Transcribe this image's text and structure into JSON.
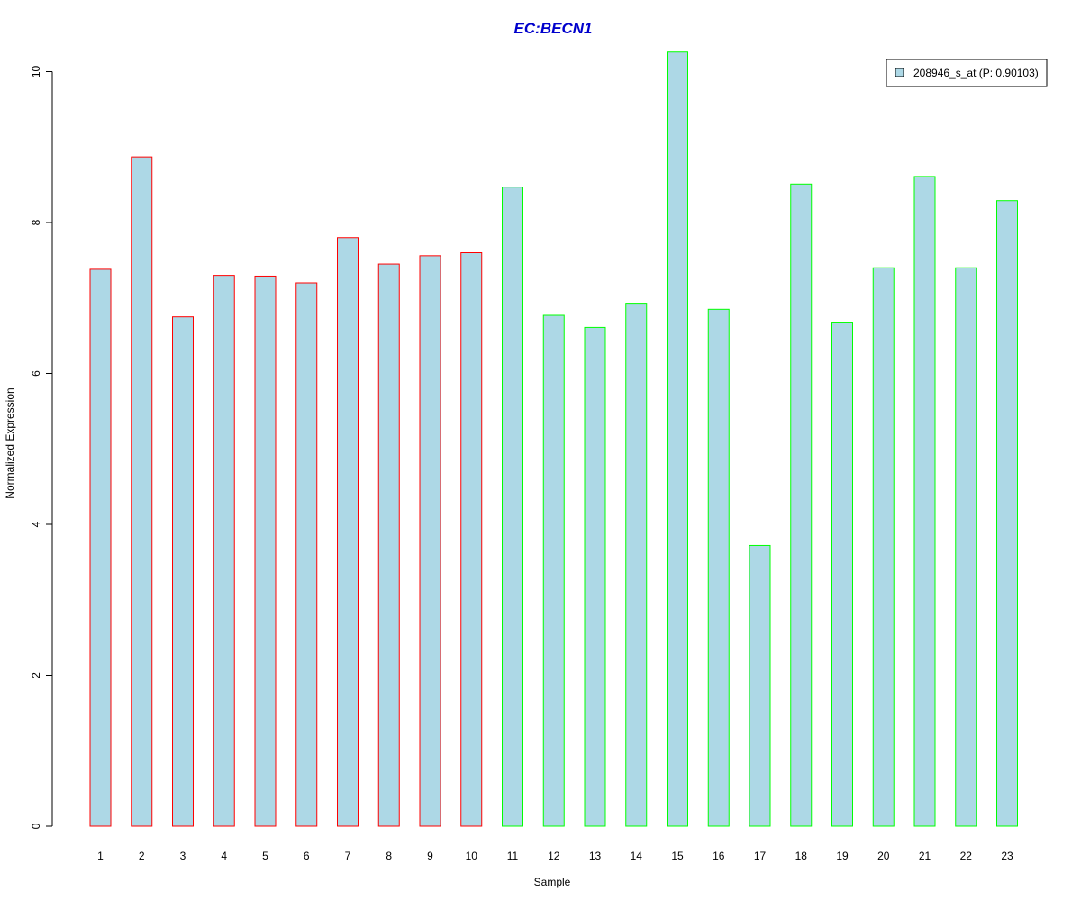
{
  "colors": {
    "title": "#0000CC",
    "bar_fill": "#ADD8E6",
    "group1_border": "#FF0000",
    "group2_border": "#00FF00",
    "axis": "#000000"
  },
  "chart_data": {
    "type": "bar",
    "title": "EC:BECN1",
    "xlabel": "Sample",
    "ylabel": "Normalized Expression",
    "ylim": [
      0,
      10.25
    ],
    "yticks": [
      0,
      2,
      4,
      6,
      8,
      10
    ],
    "grid": false,
    "legend_position": "top-right",
    "categories": [
      "1",
      "2",
      "3",
      "4",
      "5",
      "6",
      "7",
      "8",
      "9",
      "10",
      "11",
      "12",
      "13",
      "14",
      "15",
      "16",
      "17",
      "18",
      "19",
      "20",
      "21",
      "22",
      "23"
    ],
    "series": [
      {
        "name": "208946_s_at (P: 0.90103)",
        "values": [
          7.38,
          8.87,
          6.75,
          7.3,
          7.29,
          7.2,
          7.8,
          7.45,
          7.56,
          7.6,
          8.47,
          6.77,
          6.61,
          6.93,
          10.26,
          6.85,
          3.72,
          8.51,
          6.68,
          7.4,
          8.61,
          7.4,
          8.29
        ],
        "border_groups": [
          "group1",
          "group1",
          "group1",
          "group1",
          "group1",
          "group1",
          "group1",
          "group1",
          "group1",
          "group1",
          "group2",
          "group2",
          "group2",
          "group2",
          "group2",
          "group2",
          "group2",
          "group2",
          "group2",
          "group2",
          "group2",
          "group2",
          "group2"
        ]
      }
    ]
  }
}
